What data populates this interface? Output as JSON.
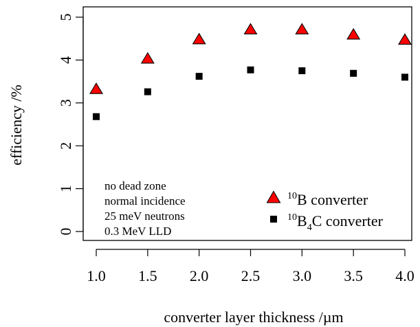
{
  "chart_data": {
    "type": "scatter",
    "title": "",
    "xlabel": "converter layer thickness /µm",
    "ylabel": "efficiency /%",
    "xlim": [
      1.0,
      4.0
    ],
    "ylim": [
      0,
      5
    ],
    "xticks": [
      "1.0",
      "1.5",
      "2.0",
      "2.5",
      "3.0",
      "3.5",
      "4.0"
    ],
    "yticks": [
      "0",
      "1",
      "2",
      "3",
      "4",
      "5"
    ],
    "grid": false,
    "legend_position": "bottom-right",
    "series": [
      {
        "name_base": "10",
        "name_main": "B converter",
        "marker": "triangle",
        "color": "#ff0000",
        "x": [
          1.0,
          1.5,
          2.0,
          2.5,
          3.0,
          3.5,
          4.0
        ],
        "y": [
          3.33,
          4.04,
          4.49,
          4.72,
          4.72,
          4.6,
          4.48
        ]
      },
      {
        "name_base": "10",
        "name_main_a": "B",
        "name_sub": "4",
        "name_main_b": "C converter",
        "marker": "square",
        "color": "#000000",
        "x": [
          1.0,
          1.5,
          2.0,
          2.5,
          3.0,
          3.5,
          4.0
        ],
        "y": [
          2.68,
          3.26,
          3.62,
          3.77,
          3.75,
          3.69,
          3.6
        ]
      }
    ],
    "annotations": [
      "no dead zone",
      "normal incidence",
      "25 meV neutrons",
      "0.3 MeV LLD"
    ]
  }
}
